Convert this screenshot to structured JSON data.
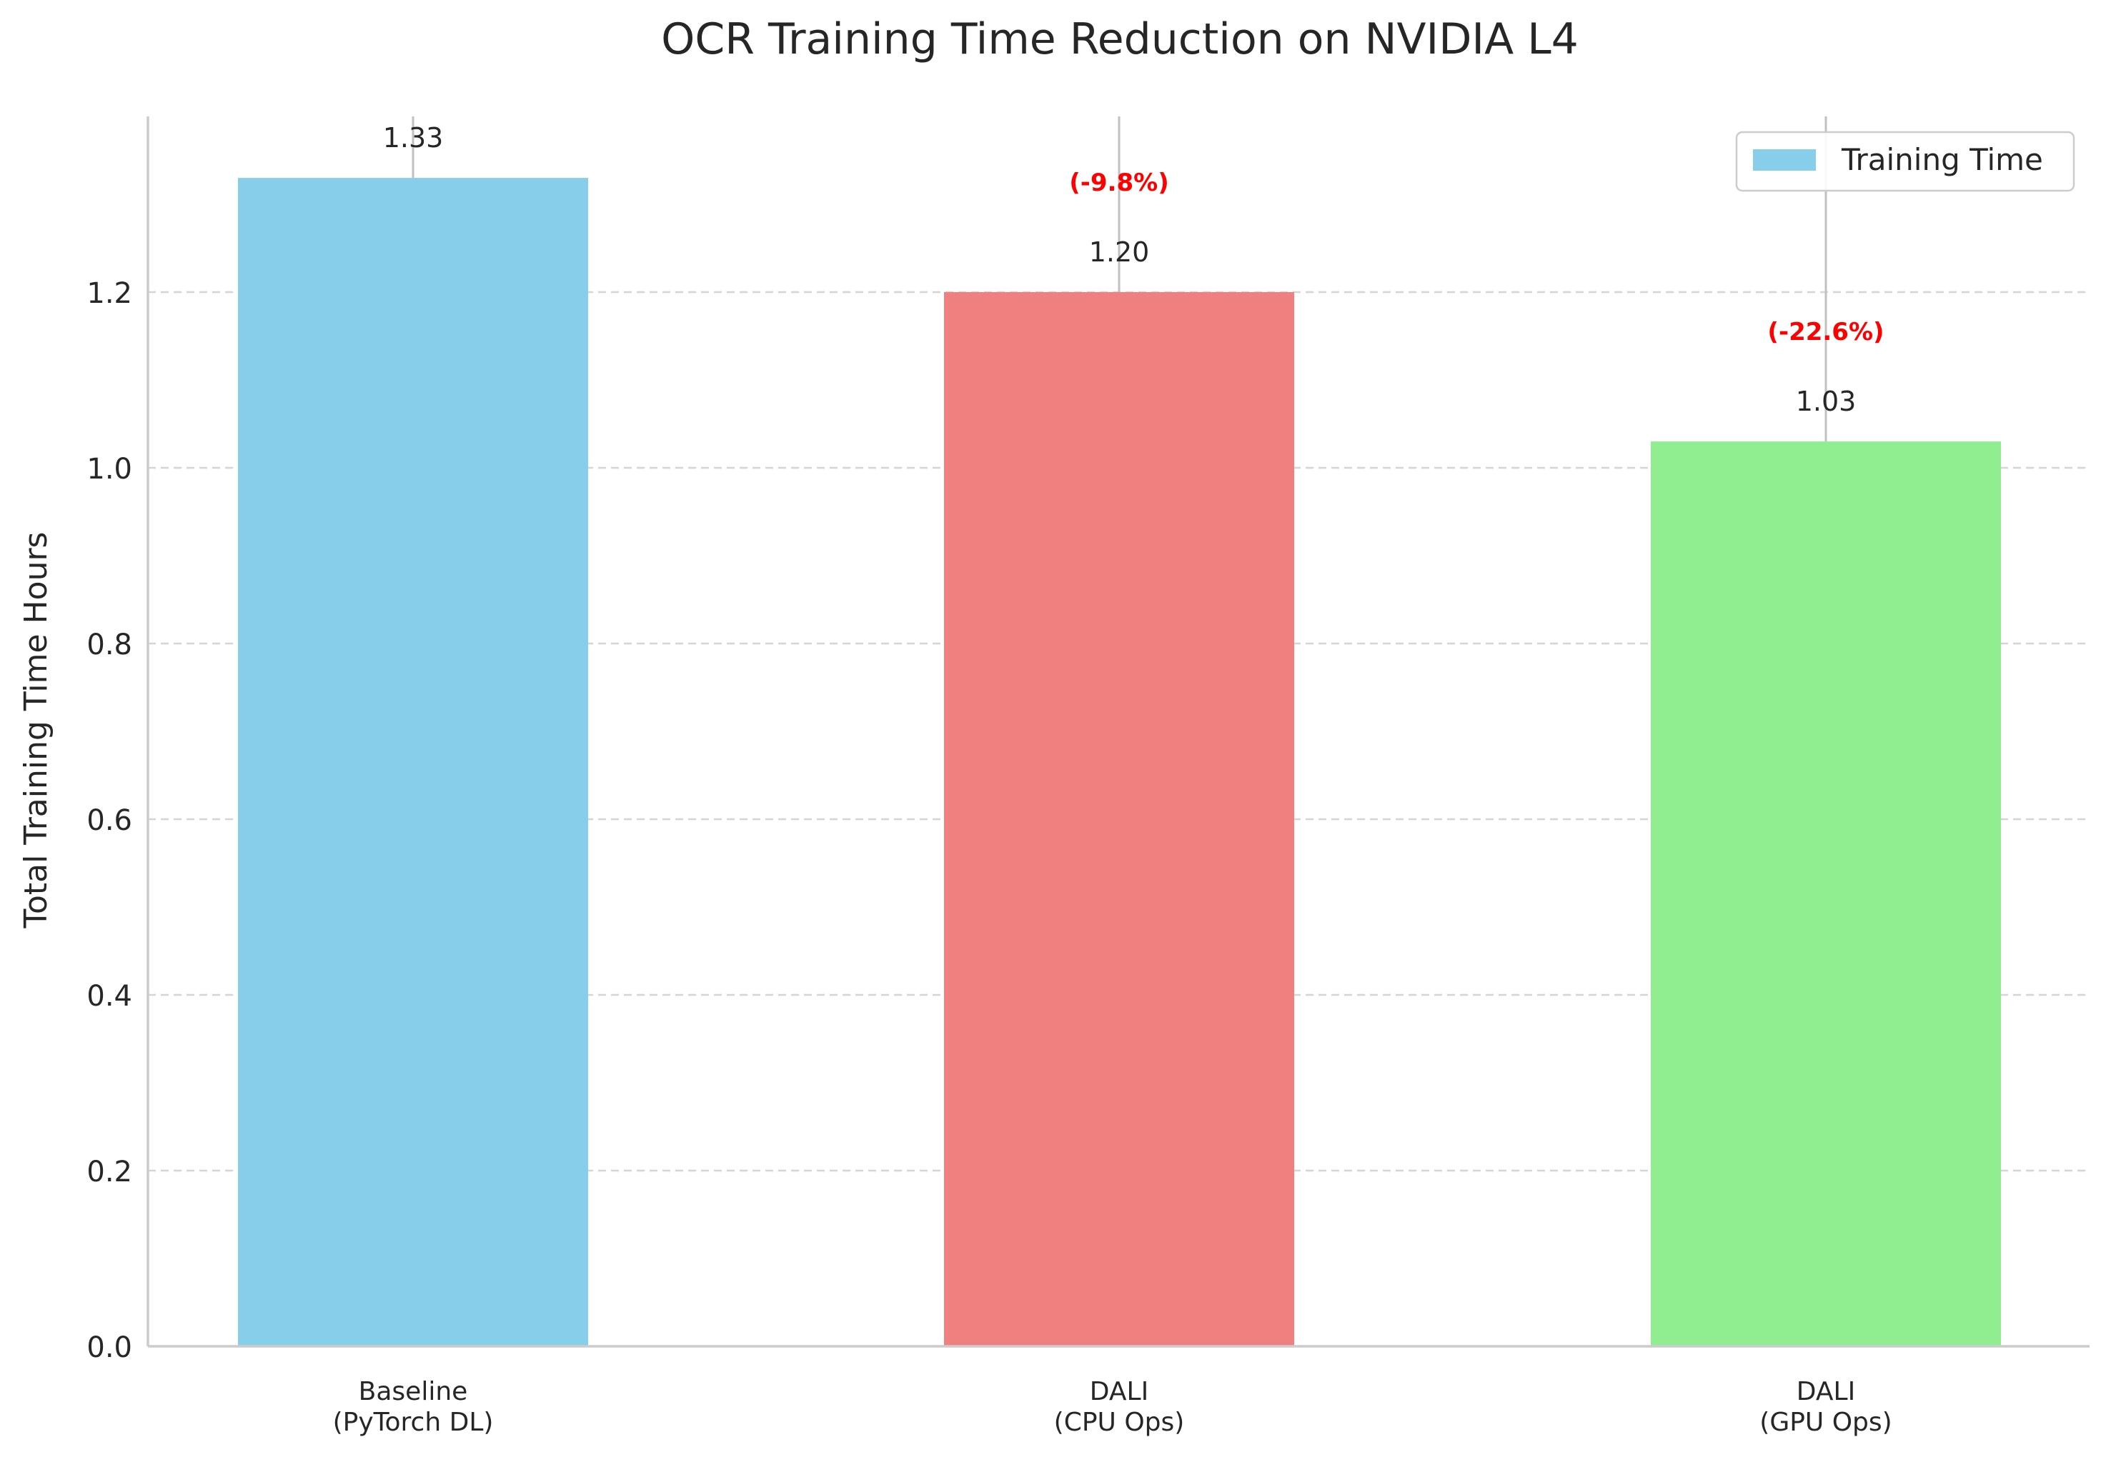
{
  "chart_data": {
    "type": "bar",
    "title": "OCR Training Time Reduction on NVIDIA L4",
    "xlabel": "",
    "ylabel": "Total Training Time Hours",
    "categories": [
      [
        "Baseline",
        "(PyTorch DL)"
      ],
      [
        "DALI",
        "(CPU Ops)"
      ],
      [
        "DALI",
        "(GPU Ops)"
      ]
    ],
    "values": [
      1.33,
      1.2,
      1.03
    ],
    "value_labels": [
      "1.33",
      "1.20",
      "1.03"
    ],
    "reduction_labels": [
      "",
      "(-9.8%)",
      "(-22.6%)"
    ],
    "bar_colors": [
      "#87ceeb",
      "#f08080",
      "#90ee90"
    ],
    "reduction_color": "#ff0000",
    "legend": {
      "entries": [
        {
          "label": "Training Time",
          "color": "#87ceeb"
        }
      ],
      "placement": "top-right"
    },
    "ylim": [
      0,
      1.4
    ],
    "yticks": [
      0.0,
      0.2,
      0.4,
      0.6,
      0.8,
      1.0,
      1.2
    ],
    "ytick_labels": [
      "0.0",
      "0.2",
      "0.4",
      "0.6",
      "0.8",
      "1.0",
      "1.2"
    ],
    "grid": "y-dashed",
    "error_bars": [
      {
        "low": 1.33,
        "high": 1.4
      },
      {
        "low": 1.2,
        "high": 1.4
      },
      {
        "low": 1.03,
        "high": 1.4
      }
    ]
  }
}
